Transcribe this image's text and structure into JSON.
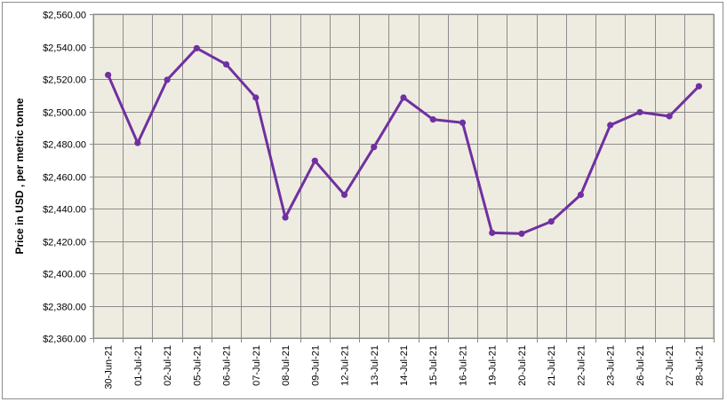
{
  "chart_data": {
    "type": "line",
    "title": "",
    "xlabel": "",
    "ylabel": "Price in USD , per metric tonne",
    "ylim": [
      2360,
      2560
    ],
    "y_ticks": [
      2360,
      2380,
      2400,
      2420,
      2440,
      2460,
      2480,
      2500,
      2520,
      2540,
      2560
    ],
    "y_tick_labels": [
      "$2,360.00",
      "$2,380.00",
      "$2,400.00",
      "$2,420.00",
      "$2,440.00",
      "$2,460.00",
      "$2,480.00",
      "$2,500.00",
      "$2,520.00",
      "$2,540.00",
      "$2,560.00"
    ],
    "grid": true,
    "legend": "none",
    "categories": [
      "30-Jun-21",
      "01-Jul-21",
      "02-Jul-21",
      "05-Jul-21",
      "06-Jul-21",
      "07-Jul-21",
      "08-Jul-21",
      "09-Jul-21",
      "12-Jul-21",
      "13-Jul-21",
      "14-Jul-21",
      "15-Jul-21",
      "16-Jul-21",
      "19-Jul-21",
      "20-Jul-21",
      "21-Jul-21",
      "22-Jul-21",
      "23-Jul-21",
      "26-Jul-21",
      "27-Jul-21",
      "28-Jul-21"
    ],
    "series": [
      {
        "values": [
          2522.5,
          2480.5,
          2519.5,
          2539,
          2529,
          2508.5,
          2434.5,
          2469.5,
          2448.5,
          2478,
          2508.5,
          2495,
          2493,
          2425,
          2424.5,
          2432,
          2448.5,
          2491.5,
          2499.5,
          2497,
          2515.5
        ],
        "color": "#7030a0"
      }
    ],
    "colors": {
      "plot_background": "#eeece1",
      "gridline": "#8c8c8c",
      "line": "#7030a0"
    }
  }
}
